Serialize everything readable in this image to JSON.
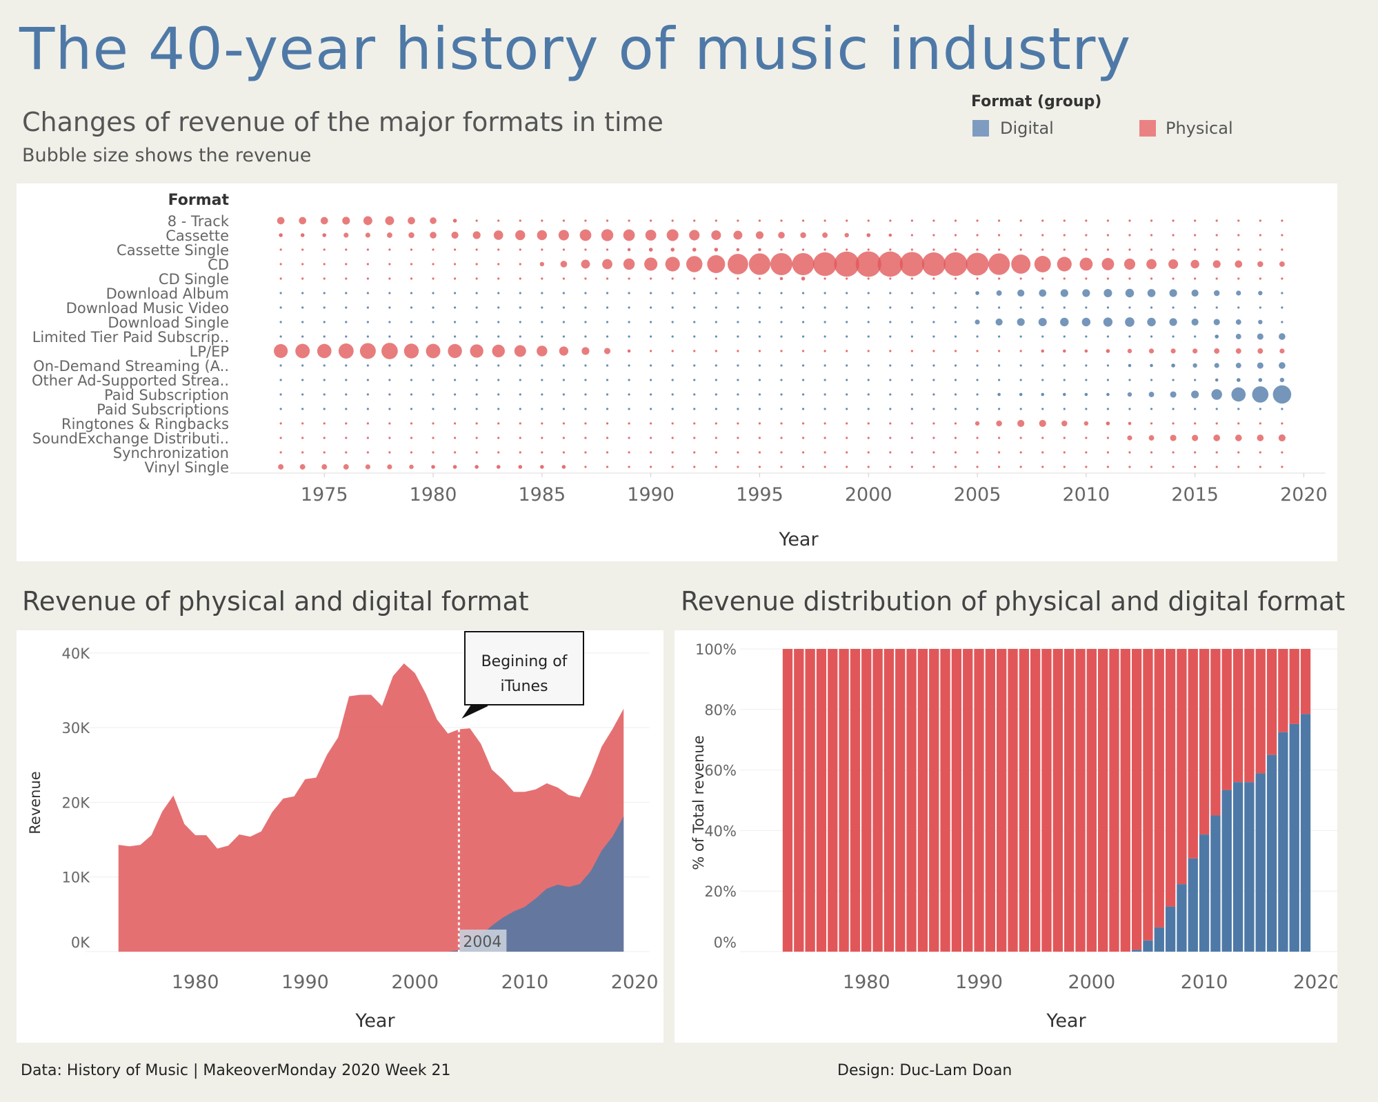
{
  "title": "The 40-year history of music industry",
  "bubble_section": {
    "title": "Changes of revenue of the major formats in time",
    "subtitle": "Bubble size shows the revenue"
  },
  "legend": {
    "title": "Format (group)",
    "items": [
      {
        "label": "Digital",
        "color": "#4e79a7"
      },
      {
        "label": "Physical",
        "color": "#e15759"
      }
    ]
  },
  "area_section": {
    "title": "Revenue of physical and digital format"
  },
  "bar_section": {
    "title": "Revenue distribution of physical and digital format"
  },
  "annotation": {
    "text_line1": "Begining of",
    "text_line2": "iTunes",
    "year_label": "2004"
  },
  "footer": {
    "left": "Data: History of Music | MakeoverMonday 2020 Week 21",
    "right": "Design: Duc-Lam Doan"
  },
  "colors": {
    "digital": "#4e79a7",
    "physical": "#e15759"
  },
  "chart_data": [
    {
      "type": "scatter",
      "title": "Changes of revenue of the major formats in time",
      "xlabel": "Year",
      "ylabel": "Format",
      "xlim": [
        1971,
        2021
      ],
      "xticks": [
        "1975",
        "1980",
        "1985",
        "1990",
        "1995",
        "2000",
        "2005",
        "2010",
        "2015",
        "2020"
      ],
      "x_start": 1973,
      "x_end": 2019,
      "formats": [
        {
          "name": "8 - Track",
          "group": "Physical",
          "values": [
            {
              "from": 1973,
              "v": [
                1.1,
                1.1,
                1.1,
                1.2,
                1.6,
                1.6,
                1.1,
                0.9,
                0.3
              ]
            }
          ]
        },
        {
          "name": "Cassette",
          "group": "Physical",
          "values": [
            {
              "from": 1973,
              "v": [
                0.3,
                0.3,
                0.3,
                0.5,
                0.5,
                0.6,
                0.7,
                0.9,
                1.0,
                1.2,
                1.8,
                2.0,
                2.0,
                2.2,
                2.7,
                2.9,
                2.7,
                2.4,
                2.8,
                2.2,
                1.9,
                1.6,
                1.2,
                0.9,
                0.7,
                0.6,
                0.4,
                0.3,
                0.2
              ]
            }
          ]
        },
        {
          "name": "Cassette Single",
          "group": "Physical",
          "values": [
            {
              "from": 1987,
              "v": [
                0.1,
                0.1,
                0.2,
                0.3,
                0.3,
                0.3,
                0.3,
                0.2,
                0.2,
                0.1,
                0.1
              ]
            }
          ]
        },
        {
          "name": "CD",
          "group": "Physical",
          "values": [
            {
              "from": 1983,
              "v": [
                0.02,
                0.1,
                0.4,
                0.9,
                1.6,
                2.1,
                2.6,
                3.5,
                4.3,
                5.3,
                6.5,
                8.5,
                9.4,
                9.9,
                9.9,
                11.4,
                12.8,
                13.2,
                12.9,
                12.0,
                11.2,
                11.4,
                10.5,
                9.4,
                7.5,
                5.5,
                4.3,
                3.4,
                3.1,
                2.5,
                2.1,
                1.9,
                1.5,
                1.2,
                1.1,
                0.7,
                0.6
              ]
            }
          ]
        },
        {
          "name": "CD Single",
          "group": "Physical",
          "values": [
            {
              "from": 1991,
              "v": [
                0.1,
                0.1,
                0.1,
                0.1,
                0.1,
                0.2,
                0.3,
                0.1,
                0.1,
                0.1
              ]
            }
          ]
        },
        {
          "name": "Download Album",
          "group": "Digital",
          "values": [
            {
              "from": 2004,
              "v": [
                0.1,
                0.3,
                0.6,
                1.0,
                1.1,
                1.2,
                1.2,
                1.4,
                1.5,
                1.3,
                1.2,
                1.0,
                0.7,
                0.5,
                0.4
              ]
            }
          ]
        },
        {
          "name": "Download Music Video",
          "group": "Digital",
          "values": [
            {
              "from": 2005,
              "v": [
                0.01,
                0.02,
                0.03,
                0.05,
                0.04,
                0.02
              ]
            }
          ]
        },
        {
          "name": "Download Single",
          "group": "Digital",
          "values": [
            {
              "from": 2004,
              "v": [
                0.1,
                0.5,
                1.0,
                1.2,
                1.4,
                1.5,
                1.5,
                1.7,
                1.8,
                1.5,
                1.2,
                1.0,
                0.8,
                0.6,
                0.4
              ]
            }
          ]
        },
        {
          "name": "Limited Tier Paid Subscrip..",
          "group": "Digital",
          "values": [
            {
              "from": 2016,
              "v": [
                0.3,
                0.6,
                0.8,
                0.9
              ]
            }
          ]
        },
        {
          "name": "LP/EP",
          "group": "Physical",
          "values": [
            {
              "from": 1973,
              "v": [
                3.9,
                4.2,
                4.1,
                4.6,
                5.1,
                5.4,
                4.4,
                4.2,
                4.0,
                3.6,
                3.3,
                2.8,
                2.3,
                1.7,
                1.2,
                0.8,
                0.2,
                0.1,
                0.1,
                0.1,
                0.1,
                0.1,
                0.1,
                0.1,
                0.1,
                0.1,
                0.1,
                0.1,
                0.1,
                0.1,
                0.1,
                0.1,
                0.1,
                0.1,
                0.1,
                0.2,
                0.2,
                0.2,
                0.3,
                0.4,
                0.5,
                0.5,
                0.5,
                0.6,
                0.6,
                0.6,
                0.5
              ]
            }
          ]
        },
        {
          "name": "On-Demand Streaming (A..",
          "group": "Digital",
          "values": [
            {
              "from": 2011,
              "v": [
                0.1,
                0.2,
                0.2,
                0.3,
                0.4,
                0.5,
                0.6,
                0.8,
                0.9
              ]
            }
          ]
        },
        {
          "name": "Other Ad-Supported Strea..",
          "group": "Digital",
          "values": [
            {
              "from": 2016,
              "v": [
                0.2,
                0.3,
                0.3,
                0.4
              ]
            }
          ]
        },
        {
          "name": "Paid Subscription",
          "group": "Digital",
          "values": [
            {
              "from": 2005,
              "v": [
                0.1,
                0.2,
                0.2,
                0.2,
                0.2,
                0.2,
                0.2,
                0.4,
                0.6,
                0.8,
                1.2,
                2.3,
                4.1,
                5.4,
                6.8
              ]
            }
          ]
        },
        {
          "name": "Paid Subscriptions",
          "group": "Digital",
          "values": []
        },
        {
          "name": "Ringtones & Ringbacks",
          "group": "Physical",
          "values": [
            {
              "from": 2005,
              "v": [
                0.4,
                0.7,
                1.0,
                1.0,
                0.7,
                0.4,
                0.3,
                0.2,
                0.1,
                0.1
              ]
            }
          ]
        },
        {
          "name": "SoundExchange Distributi..",
          "group": "Physical",
          "values": [
            {
              "from": 2012,
              "v": [
                0.5,
                0.6,
                0.8,
                0.8,
                0.9,
                0.9,
                0.9,
                1.0
              ]
            }
          ]
        },
        {
          "name": "Synchronization",
          "group": "Physical",
          "values": []
        },
        {
          "name": "Vinyl Single",
          "group": "Physical",
          "values": [
            {
              "from": 1973,
              "v": [
                0.6,
                0.6,
                0.6,
                0.6,
                0.5,
                0.5,
                0.4,
                0.3,
                0.3,
                0.3,
                0.3,
                0.3,
                0.3,
                0.3
              ]
            }
          ]
        }
      ]
    },
    {
      "type": "area",
      "title": "Revenue of physical and digital format",
      "xlabel": "Year",
      "ylabel": "Revenue",
      "xlim": [
        1970,
        2022
      ],
      "ylim": [
        0,
        41000
      ],
      "xticks": [
        "1980",
        "1990",
        "2000",
        "2010",
        "2020"
      ],
      "yticks": [
        "0K",
        "10K",
        "20K",
        "30K",
        "40K"
      ],
      "x_start": 1973,
      "series": [
        {
          "name": "Physical",
          "values": [
            14300,
            14100,
            14300,
            15600,
            18800,
            20900,
            17100,
            15600,
            15600,
            13800,
            14200,
            15700,
            15400,
            16100,
            18700,
            20500,
            20800,
            23100,
            23300,
            26400,
            28700,
            34200,
            34400,
            34400,
            32900,
            36900,
            38600,
            37300,
            34500,
            31100,
            29200,
            29600,
            28800,
            25600,
            20900,
            18500,
            16000,
            15400,
            14600,
            14100,
            13000,
            12300,
            11600,
            12900,
            13900,
            14400,
            14400
          ]
        },
        {
          "name": "Digital",
          "values": [
            0,
            0,
            0,
            0,
            0,
            0,
            0,
            0,
            0,
            0,
            0,
            0,
            0,
            0,
            0,
            0,
            0,
            0,
            0,
            0,
            0,
            0,
            0,
            0,
            0,
            0,
            0,
            0,
            0,
            0,
            0,
            183,
            1109,
            2225,
            3477,
            4556,
            5388,
            6006,
            7138,
            8440,
            8979,
            8666,
            9048,
            10770,
            13545,
            15436,
            18138
          ]
        }
      ]
    },
    {
      "type": "bar",
      "title": "Revenue distribution of physical and digital format",
      "xlabel": "Year",
      "ylabel": "% of Total revenue",
      "xlim": [
        1970,
        2022
      ],
      "ylim": [
        0,
        100
      ],
      "xticks": [
        "1980",
        "1990",
        "2000",
        "2010",
        "2020"
      ],
      "yticks": [
        "0%",
        "20%",
        "40%",
        "60%",
        "80%",
        "100%"
      ],
      "x_start": 1973,
      "series": [
        {
          "name": "Digital",
          "values": [
            0,
            0,
            0,
            0,
            0,
            0,
            0,
            0,
            0,
            0,
            0,
            0,
            0,
            0,
            0,
            0,
            0,
            0,
            0,
            0,
            0,
            0,
            0,
            0,
            0,
            0,
            0,
            0,
            0,
            0,
            0,
            0.6,
            3.7,
            8.0,
            14.9,
            22.3,
            30.8,
            38.7,
            45.0,
            53.4,
            56.0,
            56.0,
            58.9,
            65.0,
            72.5,
            75.2,
            78.5
          ]
        },
        {
          "name": "Physical",
          "values": [
            100,
            100,
            100,
            100,
            100,
            100,
            100,
            100,
            100,
            100,
            100,
            100,
            100,
            100,
            100,
            100,
            100,
            100,
            100,
            100,
            100,
            100,
            100,
            100,
            100,
            100,
            100,
            100,
            100,
            100,
            100,
            99.4,
            96.3,
            92.0,
            85.1,
            77.7,
            69.2,
            61.3,
            55.0,
            46.6,
            44.0,
            44.0,
            41.1,
            35.0,
            27.5,
            24.8,
            21.5
          ]
        }
      ]
    }
  ]
}
